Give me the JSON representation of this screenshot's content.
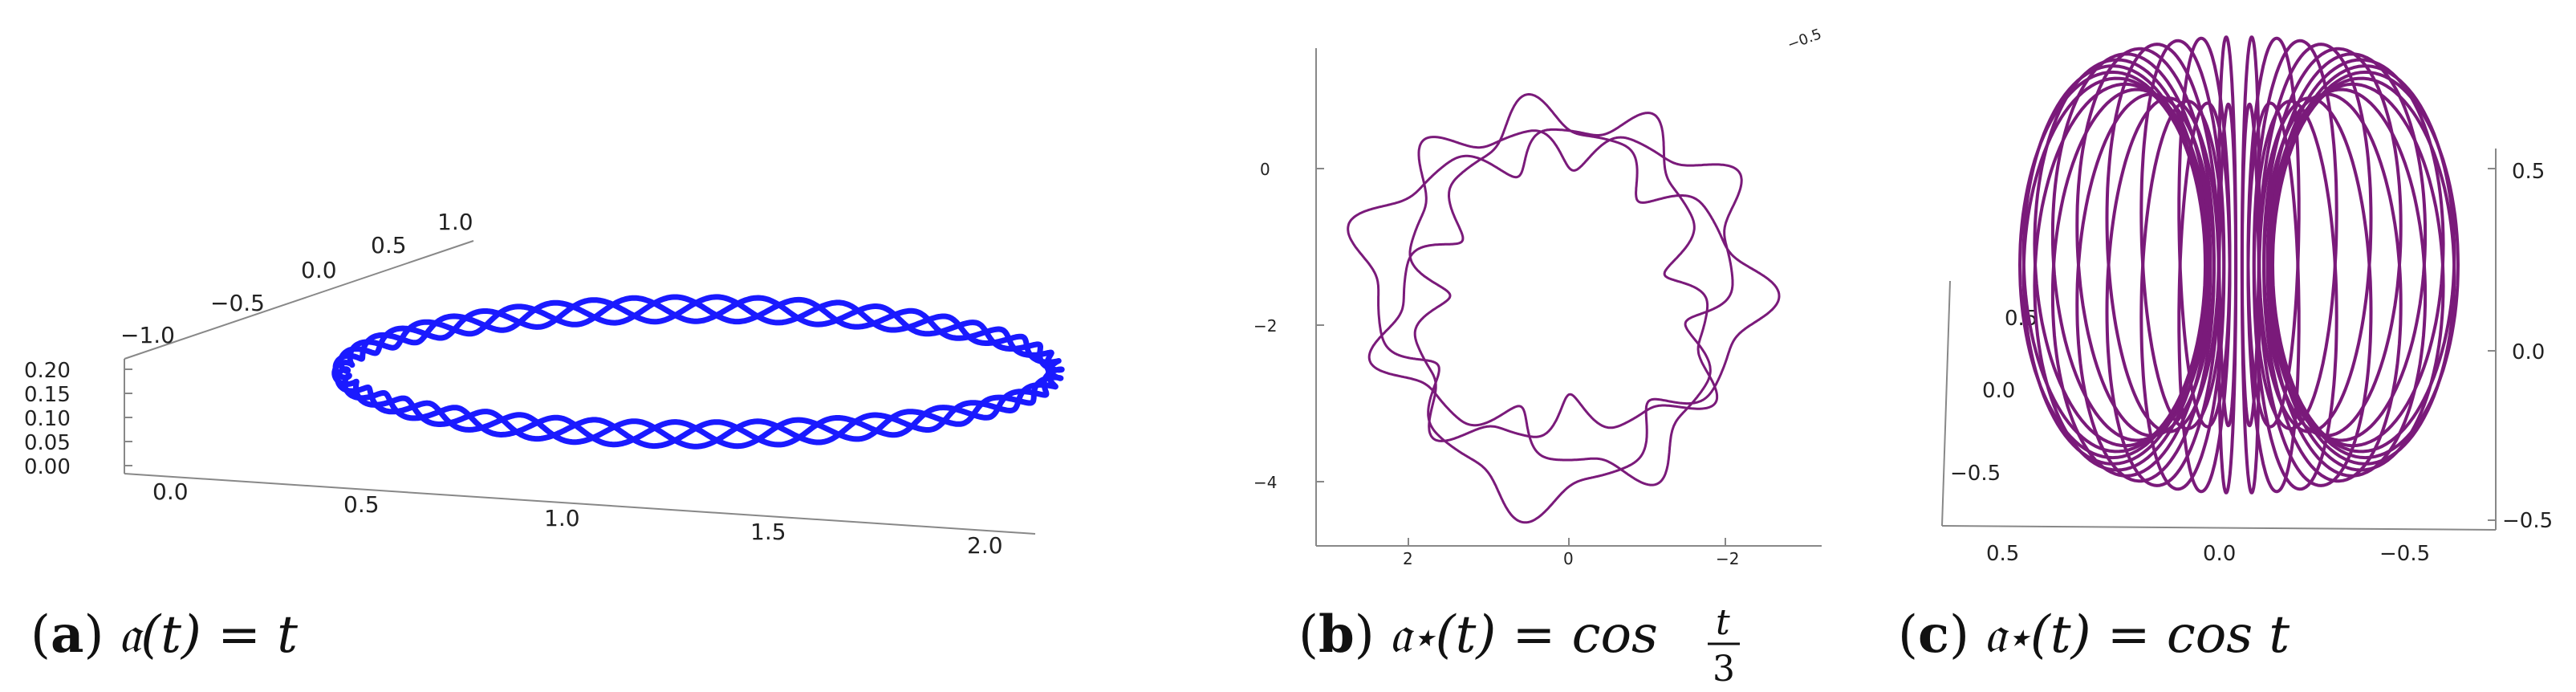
{
  "figure": {
    "panels": [
      {
        "id": "a",
        "caption": {
          "letter": "(a)",
          "math": "𝔞(t) = t"
        },
        "axes": {
          "z_ticks": [
            "0.20",
            "0.15",
            "0.10",
            "0.05",
            "0.00"
          ],
          "y_ticks": [
            "−1.0",
            "−0.5",
            "0.0",
            "0.5",
            "1.0"
          ],
          "x_ticks": [
            "0.0",
            "0.5",
            "1.0",
            "1.5",
            "2.0"
          ]
        },
        "curve_color": "#1a1aff"
      },
      {
        "id": "b",
        "caption": {
          "letter": "(b)",
          "math": "𝔞⋆(t) = cos t/3"
        },
        "axes": {
          "y_ticks": [
            "0",
            "−2",
            "−4"
          ],
          "x_ticks": [
            "2",
            "0",
            "−2"
          ],
          "corner_label": "−0.5"
        },
        "curve_color": "#7a1a7a"
      },
      {
        "id": "c",
        "caption": {
          "letter": "(c)",
          "math": "𝔞⋆(t) = cos t"
        },
        "axes": {
          "right_ticks": [
            "0.5",
            "0.0",
            "−0.5"
          ],
          "left_ticks": [
            "0.5",
            "0.0",
            "−0.5"
          ],
          "bottom_ticks": [
            "0.5",
            "0.0",
            "−0.5"
          ]
        },
        "curve_color": "#7a1a7a"
      }
    ],
    "caption_parts": {
      "a": {
        "letter": "a",
        "func": "𝔞(t) = t"
      },
      "b": {
        "letter": "b",
        "func": "𝔞⋆(t) = cos",
        "frac_num": "t",
        "frac_den": "3"
      },
      "c": {
        "letter": "c",
        "func": "𝔞⋆(t) = cos t"
      }
    }
  }
}
